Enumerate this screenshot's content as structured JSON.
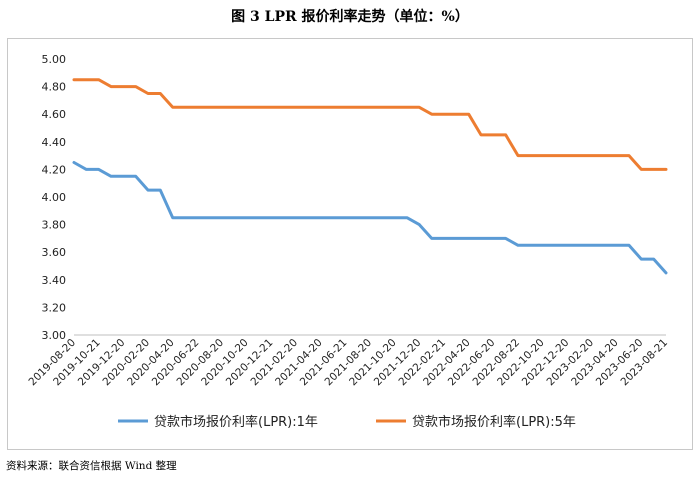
{
  "figure_title": "图 3    LPR 报价利率走势（单位：%）",
  "source_note": "资料来源：联合资信根据 Wind 整理",
  "chart_data": {
    "type": "line",
    "title": "",
    "xlabel": "",
    "ylabel": "",
    "ylim": [
      3.0,
      5.0
    ],
    "y_ticks": [
      "5.00",
      "4.80",
      "4.60",
      "4.40",
      "4.20",
      "4.00",
      "3.80",
      "3.60",
      "3.40",
      "3.20",
      "3.00"
    ],
    "grid": false,
    "legend_position": "bottom",
    "x_tick_labels": [
      "2019-08-20",
      "2019-10-21",
      "2019-12-20",
      "2020-02-20",
      "2020-04-20",
      "2020-06-22",
      "2020-08-20",
      "2020-10-20",
      "2020-12-21",
      "2021-02-20",
      "2021-04-20",
      "2021-06-21",
      "2021-08-20",
      "2021-10-20",
      "2021-12-20",
      "2022-02-21",
      "2022-04-20",
      "2022-06-20",
      "2022-08-22",
      "2022-10-20",
      "2022-12-20",
      "2023-02-20",
      "2023-04-20",
      "2023-06-20",
      "2023-08-21"
    ],
    "x": [
      "2019-08-20",
      "2019-09-20",
      "2019-10-21",
      "2019-11-20",
      "2019-12-20",
      "2020-01-20",
      "2020-02-20",
      "2020-03-20",
      "2020-04-20",
      "2020-05-20",
      "2020-06-22",
      "2020-07-20",
      "2020-08-20",
      "2020-09-21",
      "2020-10-20",
      "2020-11-20",
      "2020-12-21",
      "2021-01-20",
      "2021-02-20",
      "2021-03-22",
      "2021-04-20",
      "2021-05-20",
      "2021-06-21",
      "2021-07-20",
      "2021-08-20",
      "2021-09-22",
      "2021-10-20",
      "2021-11-22",
      "2021-12-20",
      "2022-01-20",
      "2022-02-21",
      "2022-03-21",
      "2022-04-20",
      "2022-05-20",
      "2022-06-20",
      "2022-07-20",
      "2022-08-22",
      "2022-09-20",
      "2022-10-20",
      "2022-11-21",
      "2022-12-20",
      "2023-01-20",
      "2023-02-20",
      "2023-03-20",
      "2023-04-20",
      "2023-05-22",
      "2023-06-20",
      "2023-07-20",
      "2023-08-21"
    ],
    "series": [
      {
        "name": "贷款市场报价利率(LPR):1年",
        "color": "#5b9bd5",
        "values": [
          4.25,
          4.2,
          4.2,
          4.15,
          4.15,
          4.15,
          4.05,
          4.05,
          3.85,
          3.85,
          3.85,
          3.85,
          3.85,
          3.85,
          3.85,
          3.85,
          3.85,
          3.85,
          3.85,
          3.85,
          3.85,
          3.85,
          3.85,
          3.85,
          3.85,
          3.85,
          3.85,
          3.85,
          3.8,
          3.7,
          3.7,
          3.7,
          3.7,
          3.7,
          3.7,
          3.7,
          3.65,
          3.65,
          3.65,
          3.65,
          3.65,
          3.65,
          3.65,
          3.65,
          3.65,
          3.65,
          3.55,
          3.55,
          3.45
        ]
      },
      {
        "name": "贷款市场报价利率(LPR):5年",
        "color": "#ed7d31",
        "values": [
          4.85,
          4.85,
          4.85,
          4.8,
          4.8,
          4.8,
          4.75,
          4.75,
          4.65,
          4.65,
          4.65,
          4.65,
          4.65,
          4.65,
          4.65,
          4.65,
          4.65,
          4.65,
          4.65,
          4.65,
          4.65,
          4.65,
          4.65,
          4.65,
          4.65,
          4.65,
          4.65,
          4.65,
          4.65,
          4.6,
          4.6,
          4.6,
          4.6,
          4.45,
          4.45,
          4.45,
          4.3,
          4.3,
          4.3,
          4.3,
          4.3,
          4.3,
          4.3,
          4.3,
          4.3,
          4.3,
          4.2,
          4.2,
          4.2
        ]
      }
    ]
  }
}
